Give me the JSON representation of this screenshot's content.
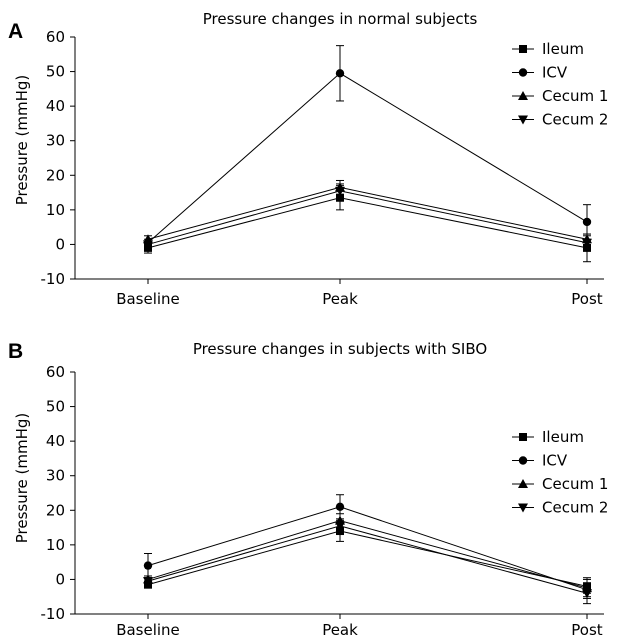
{
  "chart_data": [
    {
      "panel": "A",
      "type": "line",
      "title": "Pressure changes in normal subjects",
      "xlabel": "",
      "ylabel": "Pressure (mmHg)",
      "categories": [
        "Baseline",
        "Peak",
        "Post"
      ],
      "ylim": [
        -10,
        60
      ],
      "yticks": [
        "60",
        "50",
        "40",
        "30",
        "20",
        "10",
        "0",
        "-10"
      ],
      "legend_position": "top-right",
      "grid": false,
      "series": [
        {
          "name": "Ileum",
          "marker": "square",
          "values": [
            -1,
            13.5,
            -1
          ],
          "errors": [
            1.5,
            3.5,
            4
          ]
        },
        {
          "name": "ICV",
          "marker": "circle",
          "values": [
            0.5,
            49.5,
            6.5
          ],
          "errors": [
            1,
            8,
            5
          ]
        },
        {
          "name": "Cecum 1",
          "marker": "triangle-up",
          "values": [
            1.5,
            16.5,
            1.5
          ],
          "errors": [
            1,
            2,
            1.5
          ]
        },
        {
          "name": "Cecum 2",
          "marker": "triangle-down",
          "values": [
            0,
            15.5,
            0.5
          ],
          "errors": [
            1,
            2,
            2
          ]
        }
      ]
    },
    {
      "panel": "B",
      "type": "line",
      "title": "Pressure changes in subjects with SIBO",
      "xlabel": "",
      "ylabel": "Pressure (mmHg)",
      "categories": [
        "Baseline",
        "Peak",
        "Post"
      ],
      "ylim": [
        -10,
        60
      ],
      "yticks": [
        "60",
        "50",
        "40",
        "30",
        "20",
        "10",
        "0",
        "-10"
      ],
      "legend_position": "right",
      "grid": false,
      "series": [
        {
          "name": "Ileum",
          "marker": "square",
          "values": [
            -1.5,
            14,
            -2
          ],
          "errors": [
            1,
            3,
            2
          ]
        },
        {
          "name": "ICV",
          "marker": "circle",
          "values": [
            4,
            21,
            -3
          ],
          "errors": [
            3.5,
            3.5,
            2
          ]
        },
        {
          "name": "Cecum 1",
          "marker": "triangle-up",
          "values": [
            0,
            17,
            -2.5
          ],
          "errors": [
            1,
            2,
            3
          ]
        },
        {
          "name": "Cecum 2",
          "marker": "triangle-down",
          "values": [
            -0.5,
            15.5,
            -4
          ],
          "errors": [
            1,
            2,
            3
          ]
        }
      ]
    }
  ]
}
